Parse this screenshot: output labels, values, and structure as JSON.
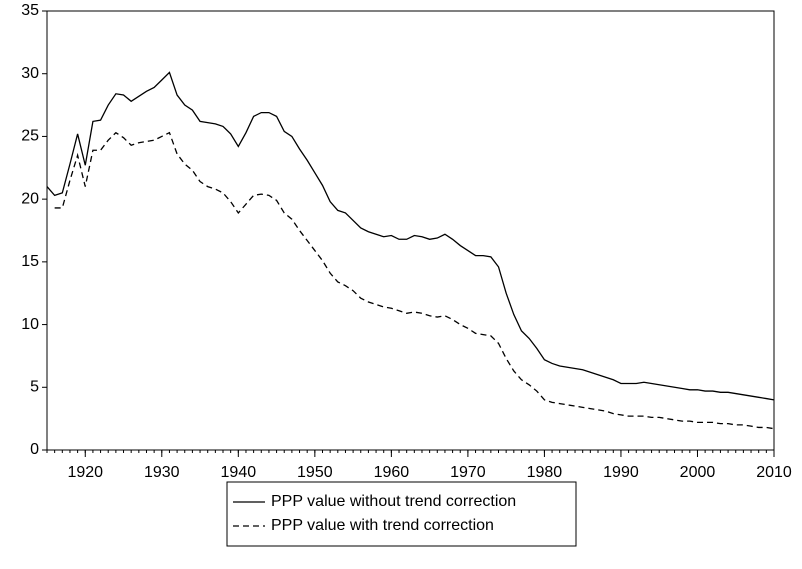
{
  "chart_data": {
    "type": "line",
    "x": [
      1915,
      1916,
      1917,
      1918,
      1919,
      1920,
      1921,
      1922,
      1923,
      1924,
      1925,
      1926,
      1927,
      1928,
      1929,
      1930,
      1931,
      1932,
      1933,
      1934,
      1935,
      1936,
      1937,
      1938,
      1939,
      1940,
      1941,
      1942,
      1943,
      1944,
      1945,
      1946,
      1947,
      1948,
      1949,
      1950,
      1951,
      1952,
      1953,
      1954,
      1955,
      1956,
      1957,
      1958,
      1959,
      1960,
      1961,
      1962,
      1963,
      1964,
      1965,
      1966,
      1967,
      1968,
      1969,
      1970,
      1971,
      1972,
      1973,
      1974,
      1975,
      1976,
      1977,
      1978,
      1979,
      1980,
      1981,
      1982,
      1983,
      1984,
      1985,
      1986,
      1987,
      1988,
      1989,
      1990,
      1991,
      1992,
      1993,
      1994,
      1995,
      1996,
      1997,
      1998,
      1999,
      2000,
      2001,
      2002,
      2003,
      2004,
      2005,
      2006,
      2007,
      2008,
      2009,
      2010
    ],
    "series": [
      {
        "name": "PPP value without trend correction",
        "color": "#000000",
        "dash": "solid",
        "values": [
          21.0,
          20.3,
          20.5,
          22.8,
          25.2,
          22.7,
          26.2,
          26.3,
          27.5,
          28.4,
          28.3,
          27.8,
          28.2,
          28.6,
          28.9,
          29.5,
          30.1,
          28.3,
          27.5,
          27.1,
          26.2,
          26.1,
          26.0,
          25.8,
          25.2,
          24.2,
          25.3,
          26.6,
          26.9,
          26.9,
          26.6,
          25.4,
          25.0,
          24.0,
          23.1,
          22.1,
          21.1,
          19.8,
          19.1,
          18.9,
          18.3,
          17.7,
          17.4,
          17.2,
          17.0,
          17.1,
          16.8,
          16.8,
          17.1,
          17.0,
          16.8,
          16.9,
          17.2,
          16.8,
          16.3,
          15.9,
          15.5,
          15.5,
          15.4,
          14.6,
          12.5,
          10.8,
          9.5,
          8.9,
          8.1,
          7.2,
          6.9,
          6.7,
          6.6,
          6.5,
          6.4,
          6.2,
          6.0,
          5.8,
          5.6,
          5.3,
          5.3,
          5.3,
          5.4,
          5.3,
          5.2,
          5.1,
          5.0,
          4.9,
          4.8,
          4.8,
          4.7,
          4.7,
          4.6,
          4.6,
          4.5,
          4.4,
          4.3,
          4.2,
          4.1,
          4.0
        ]
      },
      {
        "name": "PPP value with trend correction",
        "color": "#000000",
        "dash": "dashed",
        "values": [
          null,
          19.3,
          19.3,
          21.5,
          23.5,
          21.0,
          23.9,
          23.9,
          24.7,
          25.3,
          24.9,
          24.3,
          24.5,
          24.6,
          24.7,
          25.0,
          25.3,
          23.6,
          22.8,
          22.3,
          21.4,
          21.0,
          20.8,
          20.5,
          19.8,
          18.9,
          19.6,
          20.3,
          20.4,
          20.3,
          19.9,
          18.9,
          18.4,
          17.5,
          16.7,
          15.9,
          15.1,
          14.1,
          13.4,
          13.1,
          12.7,
          12.1,
          11.8,
          11.6,
          11.4,
          11.3,
          11.1,
          10.9,
          11.0,
          10.9,
          10.7,
          10.6,
          10.7,
          10.4,
          10.0,
          9.7,
          9.3,
          9.2,
          9.1,
          8.5,
          7.3,
          6.3,
          5.6,
          5.2,
          4.7,
          4.0,
          3.8,
          3.7,
          3.6,
          3.5,
          3.4,
          3.3,
          3.2,
          3.1,
          2.9,
          2.8,
          2.7,
          2.7,
          2.7,
          2.6,
          2.6,
          2.5,
          2.4,
          2.3,
          2.3,
          2.2,
          2.2,
          2.2,
          2.1,
          2.1,
          2.0,
          2.0,
          1.9,
          1.8,
          1.8,
          1.7
        ]
      }
    ],
    "xlim": [
      1915,
      2010
    ],
    "xticks": [
      1920,
      1930,
      1940,
      1950,
      1960,
      1970,
      1980,
      1990,
      2000,
      2010
    ],
    "ylim": [
      0,
      35
    ],
    "yticks": [
      0,
      5,
      10,
      15,
      20,
      25,
      30,
      35
    ],
    "legend": "bottom"
  }
}
